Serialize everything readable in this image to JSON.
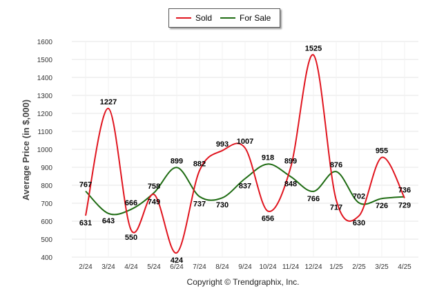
{
  "chart_data": {
    "type": "line",
    "title": "",
    "ylabel": "Average Price (in $,000)",
    "xlabel": "",
    "caption": "Copyright © Trendgraphix, Inc.",
    "ylim": [
      400,
      1600
    ],
    "yticks": [
      400,
      500,
      600,
      700,
      800,
      900,
      1000,
      1100,
      1200,
      1300,
      1400,
      1500,
      1600
    ],
    "categories": [
      "2/24",
      "3/24",
      "4/24",
      "5/24",
      "6/24",
      "7/24",
      "8/24",
      "9/24",
      "10/24",
      "11/24",
      "12/24",
      "1/25",
      "2/25",
      "3/25",
      "4/25"
    ],
    "grid": true,
    "legend_position": "top-center",
    "series": [
      {
        "name": "Sold",
        "color": "#e0141e",
        "values": [
          631,
          1227,
          550,
          749,
          424,
          882,
          993,
          1007,
          656,
          899,
          1525,
          717,
          630,
          955,
          729
        ]
      },
      {
        "name": "For Sale",
        "color": "#1e6b12",
        "values": [
          767,
          643,
          666,
          758,
          899,
          737,
          730,
          837,
          918,
          848,
          766,
          876,
          702,
          726,
          736
        ]
      }
    ]
  }
}
